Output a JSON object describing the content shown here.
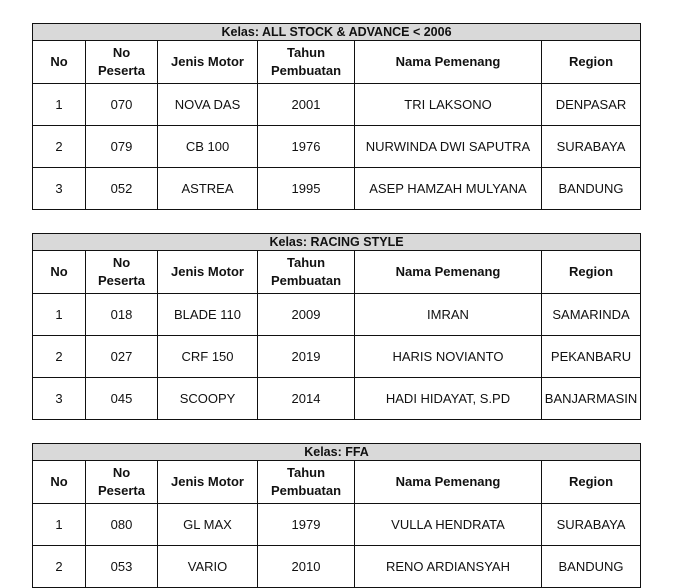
{
  "tables": [
    {
      "title": "Kelas: ALL STOCK & ADVANCE < 2006",
      "headers": [
        "No",
        "No Peserta",
        "Jenis Motor",
        "Tahun Pembuatan",
        "Nama Pemenang",
        "Region"
      ],
      "rows": [
        [
          "1",
          "070",
          "NOVA DAS",
          "2001",
          "TRI LAKSONO",
          "DENPASAR"
        ],
        [
          "2",
          "079",
          "CB 100",
          "1976",
          "NURWINDA DWI SAPUTRA",
          "SURABAYA"
        ],
        [
          "3",
          "052",
          "ASTREA",
          "1995",
          "ASEP HAMZAH MULYANA",
          "BANDUNG"
        ]
      ]
    },
    {
      "title": "Kelas: RACING STYLE",
      "headers": [
        "No",
        "No Peserta",
        "Jenis Motor",
        "Tahun Pembuatan",
        "Nama Pemenang",
        "Region"
      ],
      "rows": [
        [
          "1",
          "018",
          "BLADE 110",
          "2009",
          "IMRAN",
          "SAMARINDA"
        ],
        [
          "2",
          "027",
          "CRF 150",
          "2019",
          "HARIS NOVIANTO",
          "PEKANBARU"
        ],
        [
          "3",
          "045",
          "SCOOPY",
          "2014",
          "HADI HIDAYAT, S.PD",
          "BANJARMASIN"
        ]
      ]
    },
    {
      "title": "Kelas: FFA",
      "headers": [
        "No",
        "No Peserta",
        "Jenis Motor",
        "Tahun Pembuatan",
        "Nama Pemenang",
        "Region"
      ],
      "rows": [
        [
          "1",
          "080",
          "GL MAX",
          "1979",
          "VULLA HENDRATA",
          "SURABAYA"
        ],
        [
          "2",
          "053",
          "VARIO",
          "2010",
          "RENO ARDIANSYAH",
          "BANDUNG"
        ]
      ]
    }
  ]
}
